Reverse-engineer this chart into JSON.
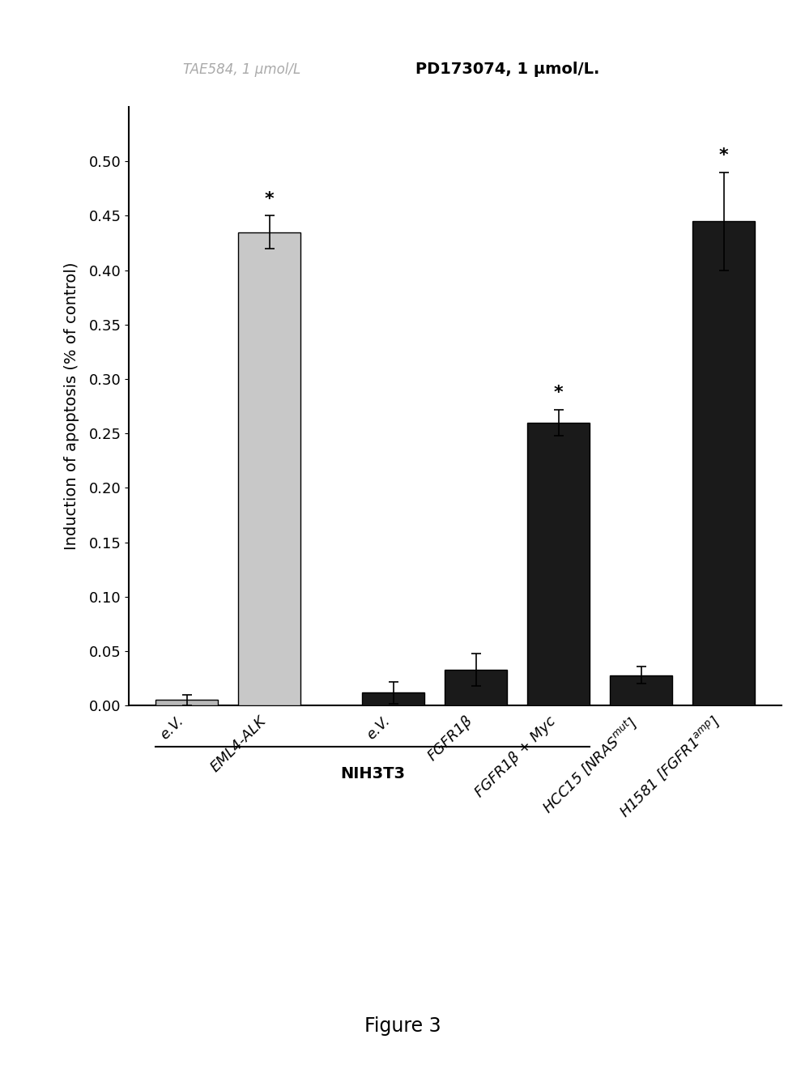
{
  "title_left": "TAE584, 1 μmol/L",
  "title_right": "PD173074, 1 μmol/L.",
  "ylabel": "Induction of apoptosis (% of control)",
  "ylim": [
    0,
    0.55
  ],
  "yticks": [
    0,
    0.05,
    0.1,
    0.15,
    0.2,
    0.25,
    0.3,
    0.35,
    0.4,
    0.45,
    0.5
  ],
  "bar_labels_display": [
    "e.V.",
    "EML4-ALK",
    "e.V.",
    "FGFR1β",
    "FGFR1β + Myc",
    "HCC15 [NRAS$^{mut}$]",
    "H1581 [FGFR1$^{amp}$]"
  ],
  "values": [
    0.005,
    0.435,
    0.012,
    0.033,
    0.26,
    0.028,
    0.445
  ],
  "errors": [
    0.005,
    0.015,
    0.01,
    0.015,
    0.012,
    0.008,
    0.045
  ],
  "colors": [
    "#b8b8b8",
    "#c8c8c8",
    "#1a1a1a",
    "#1a1a1a",
    "#1a1a1a",
    "#1a1a1a",
    "#1a1a1a"
  ],
  "significant": [
    false,
    true,
    false,
    false,
    true,
    false,
    true
  ],
  "figure_caption": "Figure 3",
  "background_color": "#ffffff"
}
